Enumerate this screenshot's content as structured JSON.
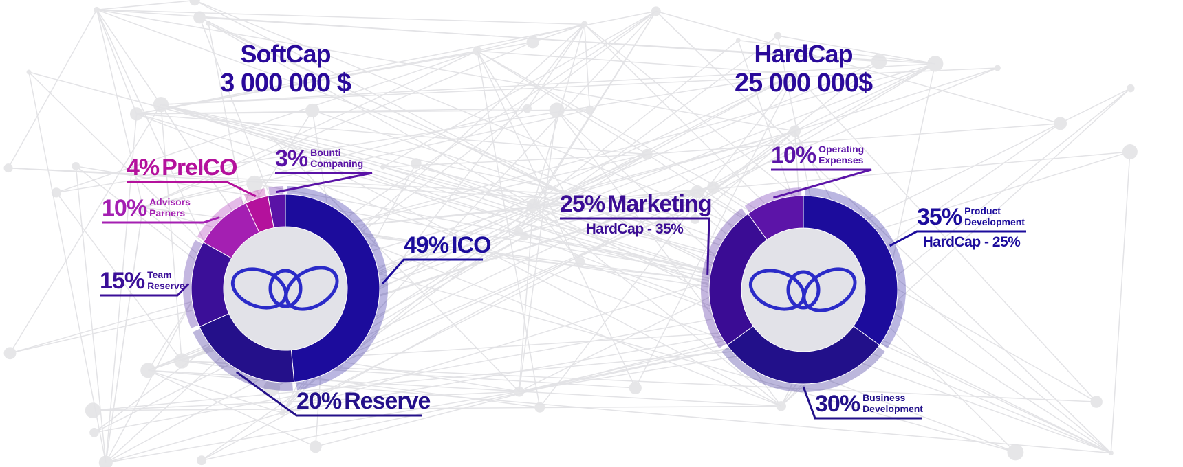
{
  "chart_data": [
    {
      "type": "pie",
      "title": "SoftCap",
      "subtitle": "3 000 000 $",
      "categories": [
        "ICO",
        "Reserve",
        "Team Reserve",
        "Advisors Parners",
        "PreICO",
        "Bounti Companing"
      ],
      "values": [
        49,
        20,
        15,
        10,
        4,
        3
      ],
      "value_labels": [
        "49%",
        "20%",
        "15%",
        "10%",
        "4%",
        "3%"
      ],
      "colors": [
        "#1c0c9c",
        "#24108a",
        "#3b0f98",
        "#a41fb2",
        "#b4119c",
        "#5a12a6"
      ]
    },
    {
      "type": "pie",
      "title": "HardCap",
      "subtitle": "25 000 000$",
      "categories": [
        "Product Development",
        "Business Development",
        "Marketing",
        "Operating Expenses"
      ],
      "values": [
        35,
        30,
        25,
        10
      ],
      "value_labels": [
        "35%",
        "30%",
        "25%",
        "10%"
      ],
      "notes": [
        "HardCap - 25%",
        null,
        "HardCap - 35%",
        null
      ],
      "colors": [
        "#1c0c9c",
        "#22108a",
        "#3a0c94",
        "#5c14a8"
      ]
    }
  ]
}
